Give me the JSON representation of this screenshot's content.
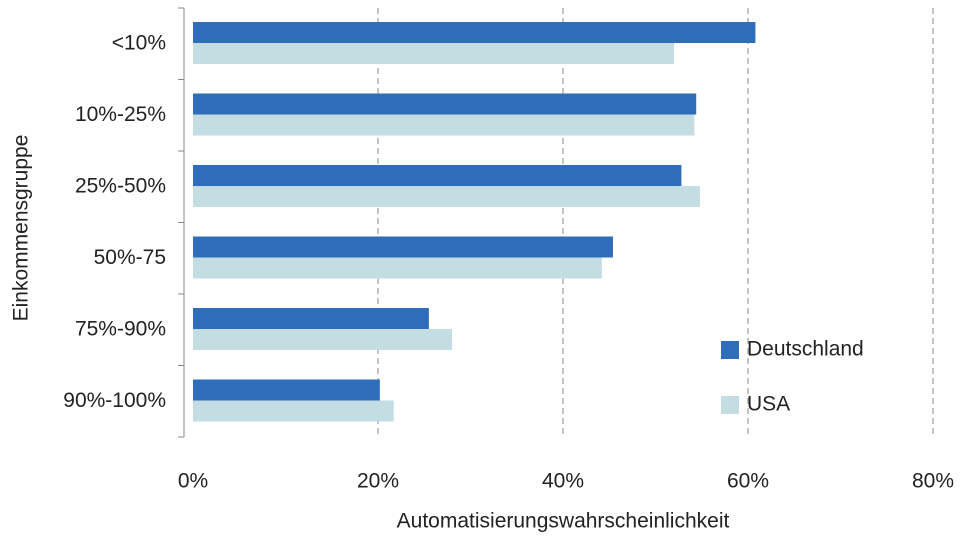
{
  "chart_data": {
    "type": "bar",
    "orientation": "horizontal",
    "categories": [
      "<10%",
      "10%-25%",
      "25%-50%",
      "50%-75",
      "75%-90%",
      "90%-100%"
    ],
    "series": [
      {
        "name": "Deutschland",
        "color": "#2e6db9",
        "values": [
          60.8,
          54.4,
          52.8,
          45.4,
          25.5,
          20.2
        ]
      },
      {
        "name": "USA",
        "color": "#c3dde2",
        "values": [
          52.0,
          54.2,
          54.8,
          44.2,
          28.0,
          21.7
        ]
      }
    ],
    "xlim": [
      0,
      80
    ],
    "xticks": [
      {
        "value": 0,
        "label": "0%"
      },
      {
        "value": 20,
        "label": "20%"
      },
      {
        "value": 40,
        "label": "40%"
      },
      {
        "value": 60,
        "label": "60%"
      },
      {
        "value": 80,
        "label": "80%"
      }
    ],
    "xlabel": "Automatisierungswahrscheinlichkeit",
    "ylabel": "Einkommensgruppe",
    "grid": true,
    "legend": "right"
  }
}
